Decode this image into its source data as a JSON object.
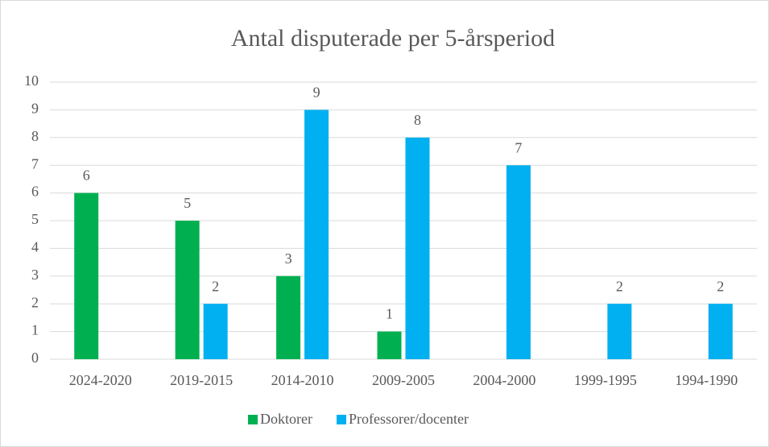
{
  "chart_data": {
    "type": "bar",
    "title": "Antal disputerade per 5-årsperiod",
    "categories": [
      "2024-2020",
      "2019-2015",
      "2014-2010",
      "2009-2005",
      "2004-2000",
      "1999-1995",
      "1994-1990"
    ],
    "series": [
      {
        "name": "Doktorer",
        "color": "#00b050",
        "values": [
          6,
          5,
          3,
          1,
          null,
          null,
          null
        ]
      },
      {
        "name": "Professorer/docenter",
        "color": "#00b0f0",
        "values": [
          null,
          2,
          9,
          8,
          7,
          2,
          2
        ]
      }
    ],
    "ylim": [
      0,
      10
    ],
    "yticks": [
      0,
      1,
      2,
      3,
      4,
      5,
      6,
      7,
      8,
      9,
      10
    ],
    "grid": true,
    "legend": "bottom"
  }
}
